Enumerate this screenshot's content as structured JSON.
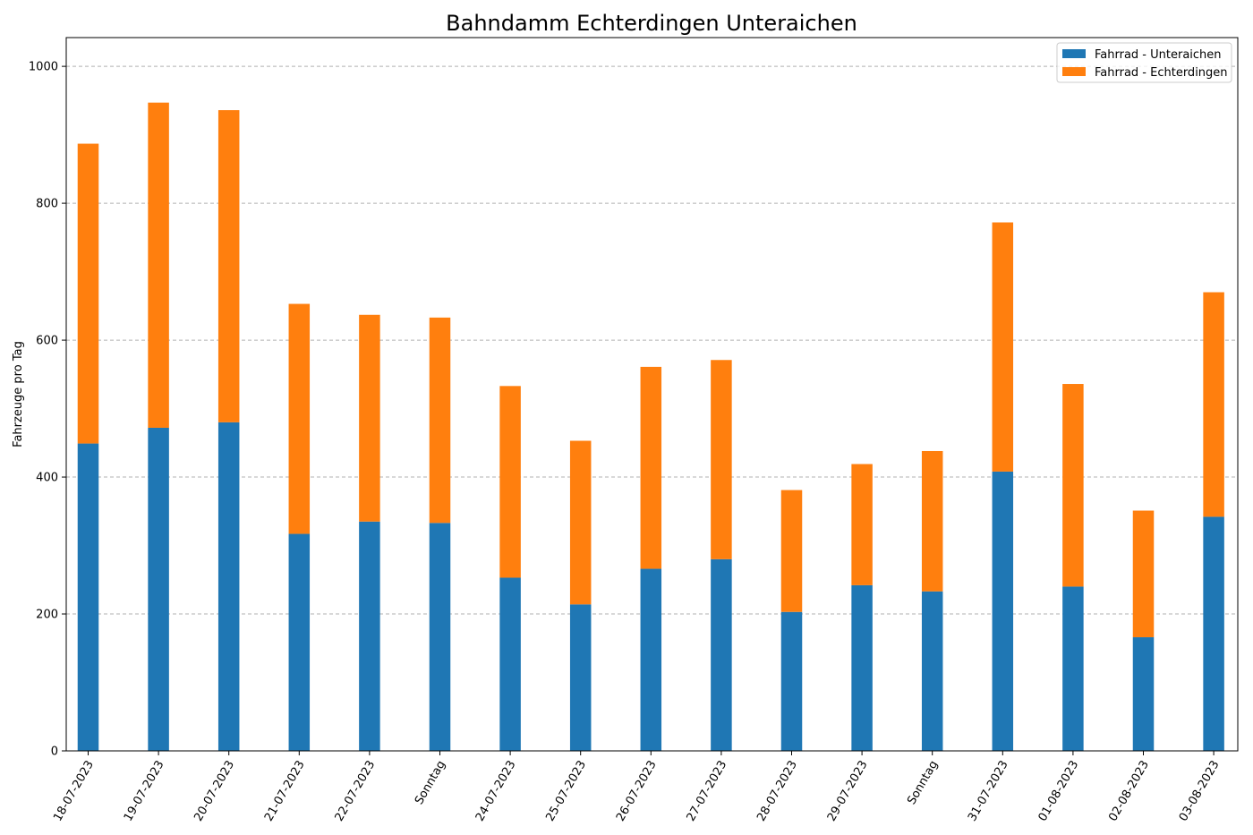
{
  "chart_data": {
    "type": "bar",
    "stacked": true,
    "title": "Bahndamm Echterdingen Unteraichen",
    "xlabel": "",
    "ylabel": "Fahrzeuge pro Tag",
    "ylim": [
      0,
      1042
    ],
    "yticks": [
      0,
      200,
      400,
      600,
      800,
      1000
    ],
    "grid": "y-dashed",
    "legend_position": "top-right",
    "categories": [
      "18-07-2023",
      "19-07-2023",
      "20-07-2023",
      "21-07-2023",
      "22-07-2023",
      "Sonntag",
      "24-07-2023",
      "25-07-2023",
      "26-07-2023",
      "27-07-2023",
      "28-07-2023",
      "29-07-2023",
      "Sonntag",
      "31-07-2023",
      "01-08-2023",
      "02-08-2023",
      "03-08-2023"
    ],
    "series": [
      {
        "name": "Fahrrad - Unteraichen",
        "color": "#1f77b4",
        "values": [
          449,
          472,
          480,
          317,
          335,
          333,
          253,
          214,
          266,
          280,
          203,
          242,
          233,
          408,
          240,
          166,
          342
        ]
      },
      {
        "name": "Fahrrad - Echterdingen",
        "color": "#ff7f0e",
        "values": [
          438,
          475,
          456,
          336,
          302,
          300,
          280,
          239,
          295,
          291,
          178,
          177,
          205,
          364,
          296,
          185,
          328
        ]
      }
    ]
  }
}
